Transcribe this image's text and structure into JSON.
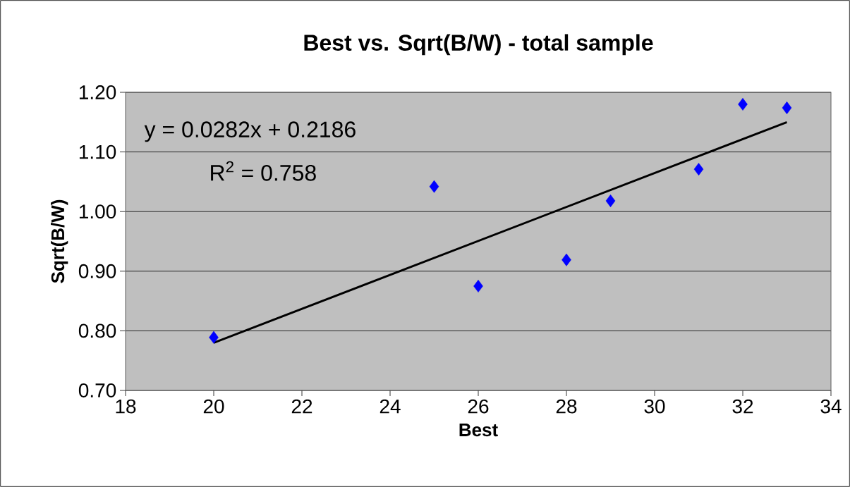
{
  "chart_data": {
    "type": "scatter",
    "title": "Best vs. Sqrt(B/W) - total sample",
    "xlabel": "Best",
    "ylabel": "Sqrt(B/W)",
    "series": [
      {
        "color": "#0000ff",
        "marker": "diamond",
        "x": [
          20,
          25,
          26,
          28,
          29,
          31,
          32,
          33
        ],
        "values": [
          0.789,
          1.042,
          0.875,
          0.919,
          1.018,
          1.071,
          1.18,
          1.174
        ]
      },
      {
        "type": "line",
        "marker": "none",
        "color": "#000000",
        "x": [
          20,
          33
        ],
        "values": [
          0.78,
          1.15
        ]
      }
    ],
    "annotations": [
      "y = 0.0282x + 0.2186",
      "R$^{2}$ = 0.758"
    ],
    "xlim": [
      18,
      34
    ],
    "xticks": [
      18,
      20,
      22,
      24,
      26,
      28,
      30,
      32,
      34
    ],
    "ylim": [
      0.7,
      1.2
    ],
    "yticks": [
      {
        "value": 0.7,
        "label": "0.70"
      },
      {
        "value": 0.8,
        "label": "0.80"
      },
      {
        "value": 0.9,
        "label": "0.90"
      },
      {
        "value": 1.0,
        "label": "1.00"
      },
      {
        "value": 1.1,
        "label": "1.10"
      },
      {
        "value": 1.2,
        "label": "1.20"
      }
    ],
    "grid": "y"
  }
}
